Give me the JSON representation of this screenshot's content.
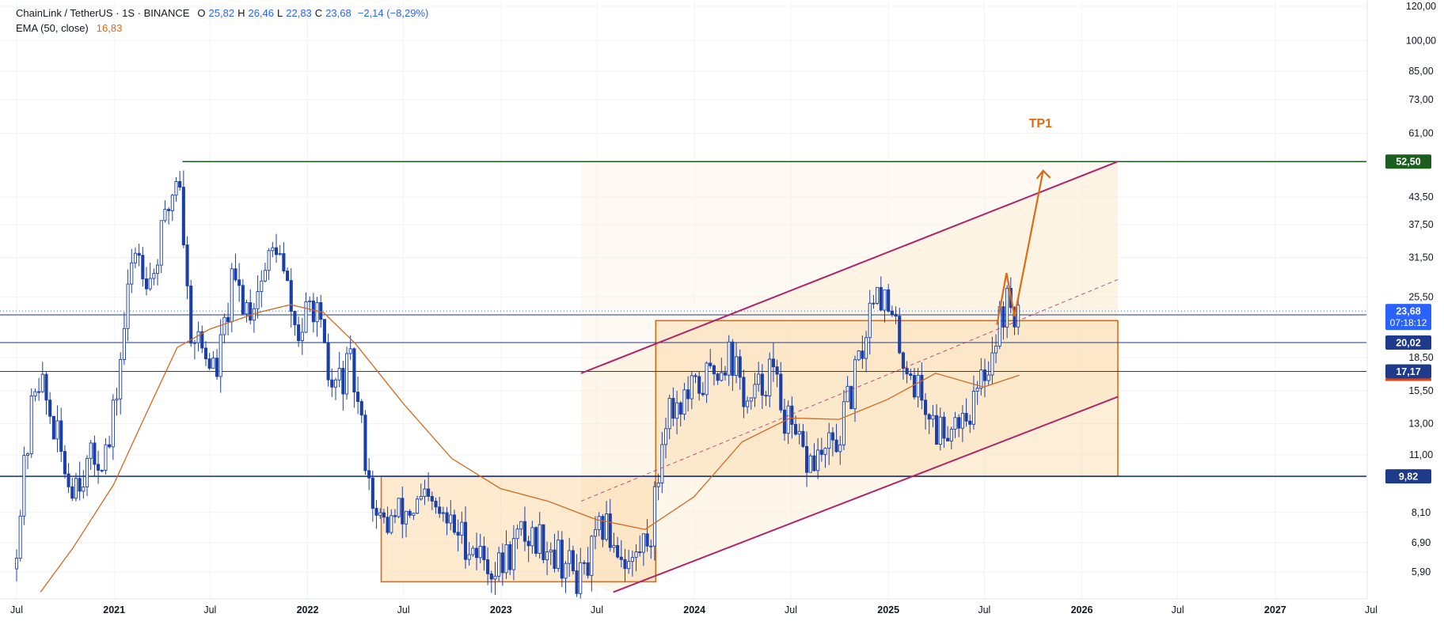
{
  "header": {
    "symbol": "ChainLink / TetherUS · 1S · BINANCE",
    "open_label": "O",
    "open": "25,82",
    "high_label": "H",
    "high": "26,46",
    "low_label": "L",
    "low": "22,83",
    "close_label": "C",
    "close": "23,68",
    "change": "−2,14 (−8,29%)",
    "ema_label": "EMA (50, close)",
    "ema_value": "16,83"
  },
  "colors": {
    "candle": "#1a3fa8",
    "ema": "#d2691e",
    "resistance": "#1b5e20",
    "channel": "#b0246a",
    "box": "#e06a12",
    "hline": "#1e3a8a",
    "current": "#2962ff",
    "axis_text": "#131722"
  },
  "annotation": {
    "tp_label": "TP1"
  },
  "chart_data": {
    "type": "candlestick",
    "title": "ChainLink / TetherUS · 1S · BINANCE",
    "y_scale": "log",
    "ylim": [
      5.3,
      125
    ],
    "x_ticks": [
      {
        "label": "Jul",
        "date": "2020-07-01"
      },
      {
        "label": "2021",
        "date": "2021-01-01"
      },
      {
        "label": "Jul",
        "date": "2021-07-01"
      },
      {
        "label": "2022",
        "date": "2022-01-01"
      },
      {
        "label": "Jul",
        "date": "2022-07-01"
      },
      {
        "label": "2023",
        "date": "2023-01-01"
      },
      {
        "label": "Jul",
        "date": "2023-07-01"
      },
      {
        "label": "2024",
        "date": "2024-01-01"
      },
      {
        "label": "Jul",
        "date": "2024-07-01"
      },
      {
        "label": "2025",
        "date": "2025-01-01"
      },
      {
        "label": "Jul",
        "date": "2025-07-01"
      },
      {
        "label": "2026",
        "date": "2026-01-01"
      },
      {
        "label": "Jul",
        "date": "2026-07-01"
      },
      {
        "label": "2027",
        "date": "2027-01-01"
      },
      {
        "label": "Jul",
        "date": "2027-07-01"
      }
    ],
    "y_ticks": [
      {
        "label": "120,00",
        "value": 120
      },
      {
        "label": "100,00",
        "value": 100
      },
      {
        "label": "85,00",
        "value": 85
      },
      {
        "label": "73,00",
        "value": 73
      },
      {
        "label": "61,00",
        "value": 61
      },
      {
        "label": "43,50",
        "value": 43.5
      },
      {
        "label": "37,50",
        "value": 37.5
      },
      {
        "label": "31,50",
        "value": 31.5
      },
      {
        "label": "25,50",
        "value": 25.5
      },
      {
        "label": "18,50",
        "value": 18.5
      },
      {
        "label": "15,50",
        "value": 15.5
      },
      {
        "label": "13,00",
        "value": 13
      },
      {
        "label": "11,00",
        "value": 11
      },
      {
        "label": "8,10",
        "value": 8.1
      },
      {
        "label": "6,90",
        "value": 6.9
      },
      {
        "label": "5,90",
        "value": 5.9
      }
    ],
    "price_anchors": [
      [
        "2020-07-01",
        6.0
      ],
      [
        "2020-08-15",
        17.5
      ],
      [
        "2020-10-15",
        9.5
      ],
      [
        "2020-12-31",
        11.5
      ],
      [
        "2021-02-15",
        34.0
      ],
      [
        "2021-03-20",
        28.0
      ],
      [
        "2021-05-10",
        52.0
      ],
      [
        "2021-05-30",
        22.0
      ],
      [
        "2021-07-20",
        17.0
      ],
      [
        "2021-08-20",
        27.5
      ],
      [
        "2021-09-20",
        24.0
      ],
      [
        "2021-11-10",
        34.0
      ],
      [
        "2021-12-20",
        20.5
      ],
      [
        "2022-01-20",
        25.0
      ],
      [
        "2022-02-20",
        15.5
      ],
      [
        "2022-04-01",
        17.5
      ],
      [
        "2022-05-20",
        7.5
      ],
      [
        "2022-08-15",
        8.5
      ],
      [
        "2022-11-10",
        6.9
      ],
      [
        "2022-12-31",
        5.9
      ],
      [
        "2023-02-15",
        7.2
      ],
      [
        "2023-04-01",
        7.0
      ],
      [
        "2023-06-10",
        5.6
      ],
      [
        "2023-07-20",
        7.6
      ],
      [
        "2023-09-10",
        6.1
      ],
      [
        "2023-10-20",
        7.5
      ],
      [
        "2023-11-15",
        14.0
      ],
      [
        "2023-12-31",
        15.0
      ],
      [
        "2024-03-15",
        19.0
      ],
      [
        "2024-04-20",
        14.0
      ],
      [
        "2024-05-30",
        17.5
      ],
      [
        "2024-07-10",
        12.0
      ],
      [
        "2024-08-10",
        10.5
      ],
      [
        "2024-10-01",
        11.5
      ],
      [
        "2024-11-15",
        18.0
      ],
      [
        "2024-12-15",
        28.5
      ],
      [
        "2025-02-10",
        18.0
      ],
      [
        "2025-04-10",
        12.5
      ],
      [
        "2025-06-20",
        14.5
      ],
      [
        "2025-07-20",
        19.0
      ],
      [
        "2025-08-15",
        24.5
      ],
      [
        "2025-09-05",
        23.68
      ]
    ],
    "ema": {
      "name": "EMA (50, close)",
      "points": [
        [
          "2020-08-15",
          5.3
        ],
        [
          "2020-10-15",
          6.7
        ],
        [
          "2020-12-31",
          9.4
        ],
        [
          "2021-02-28",
          13.5
        ],
        [
          "2021-04-30",
          19.5
        ],
        [
          "2021-06-30",
          21.5
        ],
        [
          "2021-09-30",
          23.5
        ],
        [
          "2021-11-30",
          24.5
        ],
        [
          "2022-01-31",
          23.5
        ],
        [
          "2022-03-31",
          20.0
        ],
        [
          "2022-06-30",
          14.5
        ],
        [
          "2022-09-30",
          10.8
        ],
        [
          "2022-12-31",
          9.2
        ],
        [
          "2023-03-31",
          8.6
        ],
        [
          "2023-06-30",
          7.8
        ],
        [
          "2023-09-30",
          7.4
        ],
        [
          "2023-12-31",
          8.8
        ],
        [
          "2024-03-31",
          11.8
        ],
        [
          "2024-06-30",
          13.4
        ],
        [
          "2024-09-30",
          13.3
        ],
        [
          "2024-12-31",
          14.8
        ],
        [
          "2025-03-31",
          17.0
        ],
        [
          "2025-06-30",
          15.8
        ],
        [
          "2025-09-05",
          16.83
        ]
      ]
    },
    "drawings": {
      "resistance_level": {
        "value": 52.5,
        "label": "52,50",
        "start": "2021-05-10",
        "end": "2026-03-10"
      },
      "support_level": {
        "value": 9.82,
        "label": "9,82"
      },
      "level_20": {
        "value": 20.02,
        "label": "20,02"
      },
      "level_17": {
        "value": 17.17,
        "label": "17,17"
      },
      "current_price": {
        "value": 23.68,
        "label": "23,68",
        "countdown": "07:18:12"
      },
      "box_lower": {
        "start": "2022-05-20",
        "end": "2023-10-20",
        "top": 9.82,
        "bottom": 5.6
      },
      "box_upper": {
        "start": "2023-10-20",
        "end": "2026-03-10",
        "top": 22.5,
        "bottom": 9.82
      },
      "channel_upper": {
        "start": [
          "2023-06-01",
          17.0
        ],
        "end": [
          "2026-03-10",
          52.5
        ]
      },
      "channel_lower": {
        "start": [
          "2023-08-01",
          5.3
        ],
        "end": [
          "2026-03-10",
          15.0
        ]
      },
      "channel_mid": {
        "start": [
          "2023-06-01",
          8.6
        ],
        "end": [
          "2026-03-10",
          28.0
        ]
      },
      "projection": [
        [
          "2025-07-25",
          22.0
        ],
        [
          "2025-08-12",
          29.0
        ],
        [
          "2025-08-27",
          23.0
        ],
        [
          "2025-10-20",
          50.0
        ]
      ],
      "tp1_label_at": [
        "2025-10-15",
        63.0
      ]
    }
  }
}
